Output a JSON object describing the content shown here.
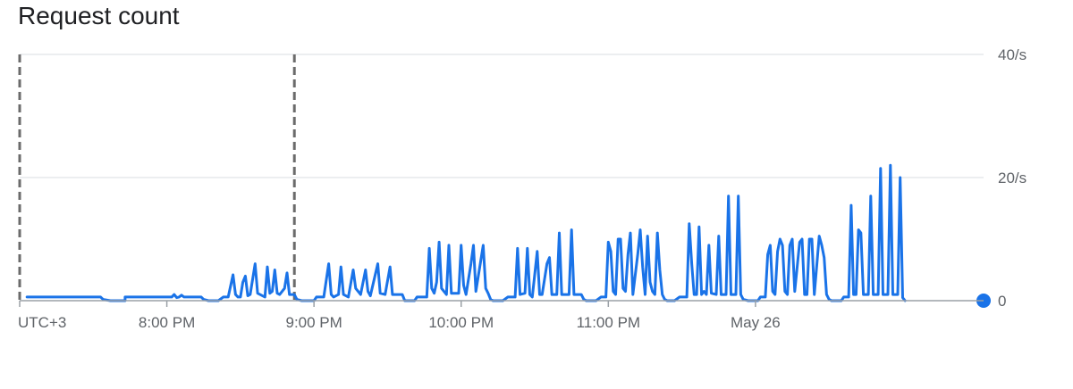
{
  "chart_data": {
    "type": "line",
    "title": "Request count",
    "timezone_label": "UTC+3",
    "x_ticks": [
      "8:00 PM",
      "9:00 PM",
      "10:00 PM",
      "11:00 PM",
      "May 26"
    ],
    "x_tick_minutes": [
      60,
      120,
      180,
      240,
      300
    ],
    "y_ticks": [
      "0",
      "20/s",
      "40/s"
    ],
    "y_tick_values": [
      0,
      20,
      40
    ],
    "ylim": [
      0,
      40
    ],
    "xlim_minutes": [
      0,
      393
    ],
    "grid": true,
    "line_color": "#1a73e8",
    "series": [
      {
        "values": [
          [
            3,
            0.6
          ],
          [
            33,
            0.6
          ],
          [
            34,
            0.2
          ],
          [
            37,
            0
          ],
          [
            43,
            0
          ],
          [
            43,
            0.6
          ],
          [
            62,
            0.6
          ],
          [
            62,
            0.6
          ],
          [
            63,
            1.0
          ],
          [
            64,
            0.5
          ],
          [
            65,
            0.6
          ],
          [
            66,
            0.9
          ],
          [
            67,
            0.6
          ],
          [
            70,
            0.6
          ],
          [
            74,
            0.6
          ],
          [
            75,
            0.2
          ],
          [
            77,
            0
          ],
          [
            81,
            0
          ],
          [
            83,
            0.6
          ],
          [
            85,
            0.6
          ],
          [
            87,
            4.2
          ],
          [
            88,
            1.0
          ],
          [
            89,
            0.6
          ],
          [
            90,
            0.6
          ],
          [
            91,
            3.0
          ],
          [
            92,
            4.0
          ],
          [
            93,
            0.8
          ],
          [
            94,
            1.0
          ],
          [
            96,
            6.0
          ],
          [
            97,
            1.2
          ],
          [
            100,
            0.6
          ],
          [
            101,
            5.5
          ],
          [
            102,
            1.2
          ],
          [
            103,
            1.5
          ],
          [
            104,
            5.0
          ],
          [
            105,
            1.2
          ],
          [
            106,
            1.0
          ],
          [
            108,
            2.0
          ],
          [
            109,
            4.5
          ],
          [
            110,
            1.0
          ],
          [
            112,
            1.0
          ],
          [
            113,
            0.2
          ],
          [
            115,
            0
          ],
          [
            120,
            0
          ],
          [
            121,
            0.6
          ],
          [
            124,
            0.6
          ],
          [
            126,
            6.0
          ],
          [
            127,
            1.0
          ],
          [
            128,
            0.6
          ],
          [
            130,
            1.0
          ],
          [
            131,
            5.5
          ],
          [
            132,
            1.0
          ],
          [
            134,
            0.6
          ],
          [
            136,
            5.0
          ],
          [
            137,
            2.0
          ],
          [
            138,
            1.5
          ],
          [
            139,
            1.0
          ],
          [
            141,
            5.0
          ],
          [
            142,
            1.5
          ],
          [
            143,
            0.8
          ],
          [
            146,
            6.0
          ],
          [
            147,
            1.2
          ],
          [
            149,
            1.0
          ],
          [
            151,
            5.5
          ],
          [
            152,
            1.0
          ],
          [
            156,
            1.0
          ],
          [
            157,
            0
          ],
          [
            161,
            0
          ],
          [
            162,
            0.6
          ],
          [
            166,
            0.6
          ],
          [
            167,
            8.5
          ],
          [
            168,
            2.0
          ],
          [
            169,
            1.2
          ],
          [
            170,
            3.0
          ],
          [
            171,
            9.5
          ],
          [
            172,
            2.0
          ],
          [
            173,
            1.5
          ],
          [
            174,
            1.0
          ],
          [
            175,
            9.0
          ],
          [
            176,
            1.2
          ],
          [
            179,
            1.2
          ],
          [
            180,
            9.0
          ],
          [
            181,
            2.5
          ],
          [
            182,
            1.0
          ],
          [
            184,
            6.0
          ],
          [
            185,
            9.0
          ],
          [
            186,
            1.5
          ],
          [
            189,
            9.0
          ],
          [
            190,
            2.0
          ],
          [
            191,
            1.2
          ],
          [
            192,
            0.2
          ],
          [
            193,
            0
          ],
          [
            197,
            0
          ],
          [
            199,
            0.6
          ],
          [
            202,
            0.6
          ],
          [
            203,
            8.5
          ],
          [
            204,
            1.0
          ],
          [
            206,
            1.2
          ],
          [
            207,
            8.5
          ],
          [
            208,
            1.0
          ],
          [
            209,
            0.6
          ],
          [
            211,
            8.0
          ],
          [
            212,
            1.0
          ],
          [
            213,
            1.0
          ],
          [
            215,
            6.0
          ],
          [
            216,
            7.0
          ],
          [
            217,
            1.0
          ],
          [
            219,
            1.0
          ],
          [
            220,
            11.0
          ],
          [
            221,
            1.0
          ],
          [
            222,
            1.0
          ],
          [
            224,
            1.0
          ],
          [
            225,
            11.5
          ],
          [
            226,
            1.0
          ],
          [
            229,
            1.0
          ],
          [
            230,
            0.2
          ],
          [
            231,
            0
          ],
          [
            235,
            0
          ],
          [
            237,
            0.6
          ],
          [
            239,
            0.6
          ],
          [
            240,
            9.5
          ],
          [
            241,
            8.0
          ],
          [
            242,
            1.5
          ],
          [
            243,
            1.0
          ],
          [
            244,
            10.0
          ],
          [
            245,
            10.0
          ],
          [
            246,
            2.0
          ],
          [
            247,
            1.5
          ],
          [
            248,
            7.5
          ],
          [
            249,
            11.0
          ],
          [
            250,
            1.0
          ],
          [
            252,
            7.5
          ],
          [
            253,
            11.5
          ],
          [
            254,
            5.5
          ],
          [
            255,
            1.0
          ],
          [
            256,
            10.5
          ],
          [
            257,
            3.0
          ],
          [
            258,
            1.5
          ],
          [
            259,
            1.0
          ],
          [
            260,
            11.0
          ],
          [
            261,
            5.0
          ],
          [
            262,
            1.0
          ],
          [
            263,
            0.2
          ],
          [
            264,
            0
          ],
          [
            267,
            0
          ],
          [
            269,
            0.6
          ],
          [
            272,
            0.6
          ],
          [
            273,
            12.5
          ],
          [
            274,
            6.0
          ],
          [
            275,
            1.0
          ],
          [
            276,
            1.0
          ],
          [
            277,
            12.0
          ],
          [
            278,
            1.0
          ],
          [
            279,
            1.5
          ],
          [
            280,
            1.0
          ],
          [
            281,
            9.0
          ],
          [
            282,
            1.2
          ],
          [
            284,
            1.0
          ],
          [
            285,
            10.5
          ],
          [
            286,
            1.0
          ],
          [
            288,
            1.0
          ],
          [
            289,
            17.0
          ],
          [
            290,
            1.0
          ],
          [
            292,
            1.0
          ],
          [
            293,
            17.0
          ],
          [
            294,
            1.0
          ],
          [
            295,
            0.2
          ],
          [
            297,
            0
          ],
          [
            301,
            0
          ],
          [
            302,
            0.6
          ],
          [
            304,
            0.6
          ],
          [
            305,
            7.5
          ],
          [
            306,
            9.0
          ],
          [
            307,
            1.5
          ],
          [
            308,
            1.0
          ],
          [
            309,
            8.0
          ],
          [
            310,
            10.0
          ],
          [
            311,
            9.0
          ],
          [
            312,
            1.5
          ],
          [
            313,
            1.0
          ],
          [
            314,
            9.0
          ],
          [
            315,
            10.0
          ],
          [
            316,
            1.5
          ],
          [
            318,
            9.5
          ],
          [
            319,
            10.0
          ],
          [
            320,
            1.0
          ],
          [
            321,
            1.0
          ],
          [
            322,
            10.0
          ],
          [
            323,
            10.0
          ],
          [
            324,
            1.0
          ],
          [
            326,
            10.5
          ],
          [
            327,
            9.0
          ],
          [
            328,
            7.0
          ],
          [
            329,
            1.0
          ],
          [
            330,
            0.2
          ],
          [
            331,
            0
          ],
          [
            335,
            0
          ],
          [
            336,
            0.6
          ],
          [
            338,
            0.6
          ],
          [
            339,
            15.5
          ],
          [
            340,
            1.0
          ],
          [
            341,
            1.0
          ],
          [
            342,
            11.5
          ],
          [
            343,
            11.0
          ],
          [
            344,
            1.0
          ],
          [
            346,
            1.0
          ],
          [
            347,
            17.0
          ],
          [
            348,
            1.0
          ],
          [
            350,
            1.0
          ],
          [
            351,
            21.5
          ],
          [
            352,
            1.0
          ],
          [
            354,
            1.0
          ],
          [
            355,
            22.0
          ],
          [
            356,
            1.0
          ],
          [
            358,
            1.0
          ],
          [
            359,
            20.0
          ],
          [
            360,
            0.5
          ],
          [
            361,
            0
          ]
        ],
        "end_point": [
          393,
          0
        ]
      }
    ]
  }
}
